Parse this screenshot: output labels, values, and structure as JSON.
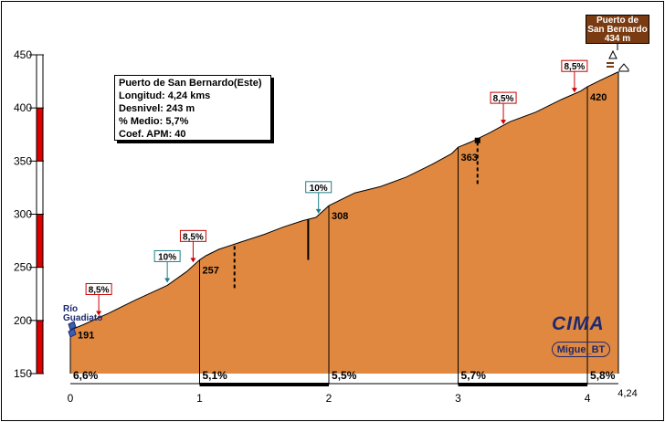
{
  "chart_data": {
    "type": "area",
    "title": "Puerto de San Bernardo(Este)",
    "info": [
      "Puerto de San Bernardo(Este)",
      "Longitud: 4,24 kms",
      "Desnivel: 243 m",
      "% Medio: 5,7%",
      "Coef. APM: 40"
    ],
    "xlim": [
      0,
      4.24
    ],
    "ylim": [
      150,
      450
    ],
    "x_ticks": [
      "0",
      "1",
      "2",
      "3",
      "4"
    ],
    "x_end_label": "4,24",
    "y_ticks": [
      "450",
      "400",
      "350",
      "300",
      "250",
      "200",
      "150"
    ],
    "profile": {
      "x": [
        0,
        0.1,
        0.3,
        0.5,
        0.75,
        0.9,
        1.0,
        1.05,
        1.15,
        1.3,
        1.5,
        1.65,
        1.8,
        1.9,
        2.0,
        2.2,
        2.4,
        2.6,
        2.8,
        2.95,
        3.0,
        3.1,
        3.25,
        3.4,
        3.6,
        3.8,
        3.95,
        4.0,
        4.1,
        4.24
      ],
      "y": [
        191,
        196,
        207,
        219,
        233,
        246,
        257,
        261,
        267,
        273,
        281,
        288,
        294,
        297,
        308,
        320,
        326,
        335,
        347,
        357,
        363,
        368,
        377,
        387,
        396,
        408,
        416,
        420,
        426,
        434
      ]
    },
    "km_markers": [
      {
        "x": 1,
        "label": "257"
      },
      {
        "x": 2,
        "label": "308"
      },
      {
        "x": 3,
        "label": "363"
      },
      {
        "x": 4,
        "label": "420"
      }
    ],
    "start_label": "191",
    "segment_gradients": [
      "6,6%",
      "5,1%",
      "5,5%",
      "5,7%",
      "5,8%"
    ],
    "max_gradients": [
      {
        "x": 0.22,
        "y": 202,
        "label": "8,5%",
        "style": "red"
      },
      {
        "x": 0.75,
        "y": 233,
        "label": "10%",
        "style": "teal"
      },
      {
        "x": 0.95,
        "y": 252,
        "label": "8,5%",
        "style": "red"
      },
      {
        "x": 1.92,
        "y": 298,
        "label": "10%",
        "style": "teal"
      },
      {
        "x": 3.35,
        "y": 382,
        "label": "8,5%",
        "style": "red"
      },
      {
        "x": 3.9,
        "y": 412,
        "label": "8,5%",
        "style": "red"
      }
    ],
    "start_place": "Río Guadiato",
    "summit": {
      "name_line1": "Puerto de",
      "name_line2": "San Bernardo",
      "altitude": "434 m"
    },
    "brand": "CIMA",
    "author": "Migue_BT",
    "colors": {
      "fill": "#e08840",
      "box_red": "#cc0000",
      "box_teal": "#1e7f8a",
      "scale_red": "#dd0000",
      "summit_bg": "#7a3b12",
      "brand": "#1e2a6e"
    }
  }
}
